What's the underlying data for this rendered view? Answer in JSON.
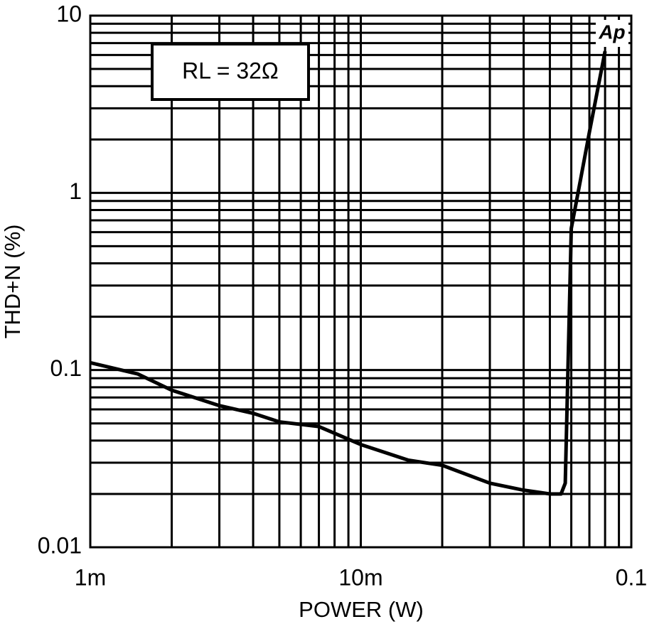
{
  "chart_data": {
    "type": "line",
    "x_label": "POWER (W)",
    "y_label": "THD+N (%)",
    "annotation": "RL = 32Ω",
    "logo": "Ap",
    "xscale": "log",
    "yscale": "log",
    "grid": true,
    "xlim": [
      0.001,
      0.1
    ],
    "ylim": [
      0.01,
      10
    ],
    "xticks": [
      {
        "value": 0.001,
        "label": "1m"
      },
      {
        "value": 0.01,
        "label": "10m"
      },
      0.1
    ],
    "yticks": [
      0.01,
      0.1,
      1,
      10
    ],
    "x": [
      0.001,
      0.0015,
      0.002,
      0.003,
      0.004,
      0.005,
      0.007,
      0.01,
      0.015,
      0.02,
      0.03,
      0.04,
      0.05,
      0.055,
      0.057,
      0.06,
      0.065,
      0.07,
      0.08
    ],
    "series": [
      {
        "color": "#000000",
        "values": [
          0.11,
          0.095,
          0.077,
          0.063,
          0.057,
          0.051,
          0.048,
          0.038,
          0.031,
          0.029,
          0.023,
          0.021,
          0.02,
          0.02,
          0.023,
          0.63,
          1.2,
          2.2,
          6.3
        ]
      }
    ]
  }
}
